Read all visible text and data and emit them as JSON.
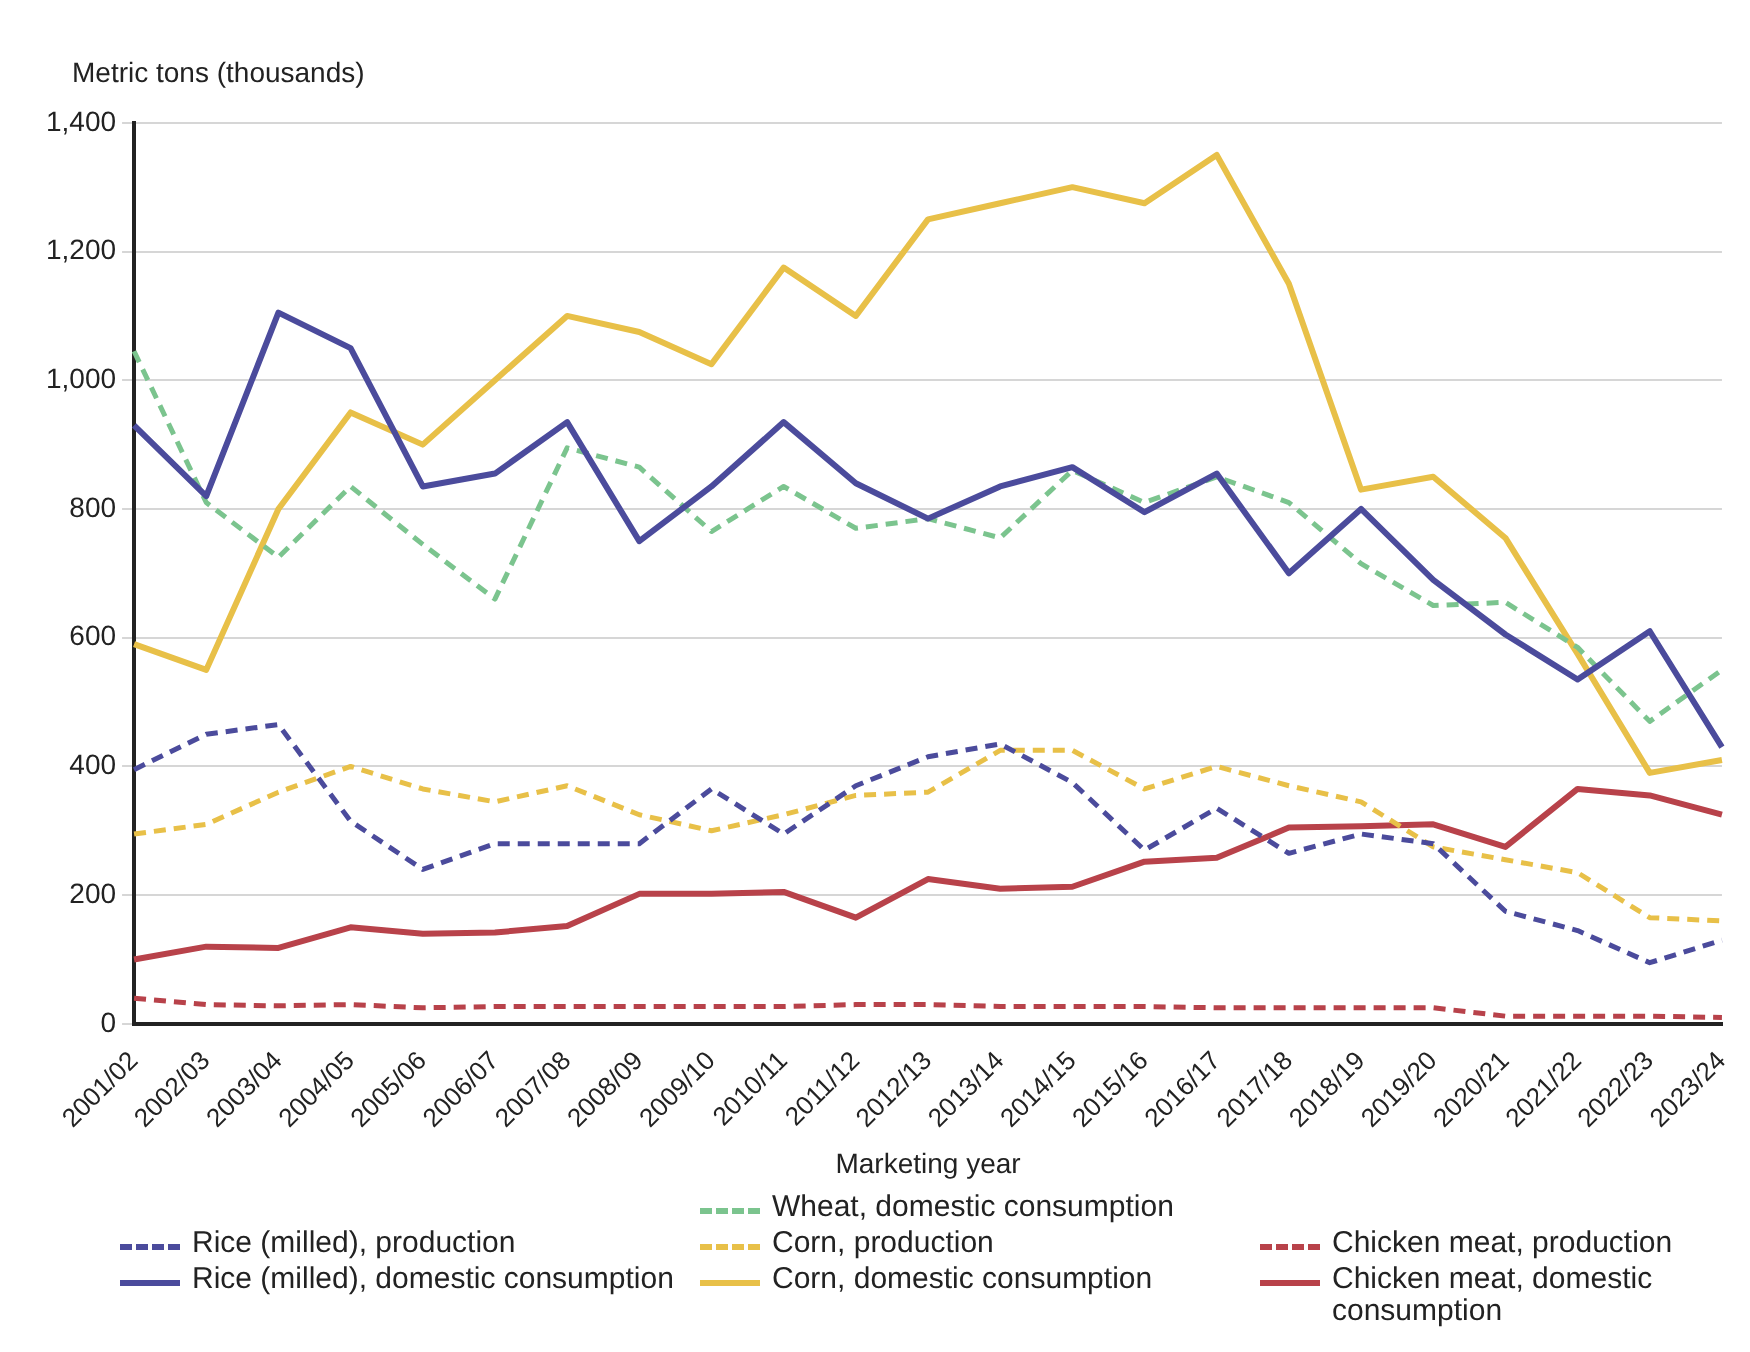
{
  "chart_data": {
    "type": "line",
    "ylabel": "Metric tons (thousands)",
    "xlabel": "Marketing year",
    "categories": [
      "2001/02",
      "2002/03",
      "2003/04",
      "2004/05",
      "2005/06",
      "2006/07",
      "2007/08",
      "2008/09",
      "2009/10",
      "2010/11",
      "2011/12",
      "2012/13",
      "2013/14",
      "2014/15",
      "2015/16",
      "2016/17",
      "2017/18",
      "2018/19",
      "2019/20",
      "2020/21",
      "2021/22",
      "2022/23",
      "2023/24"
    ],
    "ylim": [
      0,
      1400
    ],
    "yticks": [
      {
        "value": 0,
        "label": "0"
      },
      {
        "value": 200,
        "label": "200"
      },
      {
        "value": 400,
        "label": "400"
      },
      {
        "value": 600,
        "label": "600"
      },
      {
        "value": 800,
        "label": "800"
      },
      {
        "value": 1000,
        "label": "1,000"
      },
      {
        "value": 1200,
        "label": "1,200"
      },
      {
        "value": 1400,
        "label": "1,400"
      }
    ],
    "grid": "y",
    "legend": "bottom",
    "marker": "none",
    "series": [
      {
        "name": "Rice (milled), production",
        "color": "#4b4b9c",
        "line_style": "dashed",
        "values": [
          395,
          450,
          465,
          315,
          240,
          280,
          280,
          280,
          365,
          295,
          370,
          415,
          435,
          375,
          270,
          335,
          265,
          295,
          280,
          175,
          145,
          95,
          130
        ]
      },
      {
        "name": "Rice (milled), domestic consumption",
        "color": "#4b4b9c",
        "line_style": "solid",
        "values": [
          930,
          820,
          1105,
          1050,
          835,
          855,
          935,
          750,
          835,
          935,
          840,
          785,
          835,
          865,
          795,
          855,
          700,
          800,
          690,
          605,
          535,
          610,
          430
        ]
      },
      {
        "name": "Wheat, domestic consumption",
        "color": "#7bc48e",
        "line_style": "dashed",
        "values": [
          1045,
          810,
          725,
          835,
          745,
          660,
          895,
          865,
          765,
          835,
          770,
          785,
          755,
          860,
          810,
          850,
          810,
          715,
          650,
          655,
          585,
          470,
          550
        ]
      },
      {
        "name": "Corn, production",
        "color": "#e8c048",
        "line_style": "dashed",
        "values": [
          295,
          310,
          360,
          400,
          365,
          345,
          370,
          325,
          300,
          325,
          355,
          360,
          425,
          425,
          365,
          400,
          370,
          345,
          275,
          255,
          235,
          165,
          160
        ]
      },
      {
        "name": "Corn, domestic consumption",
        "color": "#e8c048",
        "line_style": "solid",
        "values": [
          590,
          550,
          800,
          950,
          900,
          1000,
          1100,
          1075,
          1025,
          1175,
          1100,
          1250,
          1275,
          1300,
          1275,
          1350,
          1150,
          830,
          850,
          755,
          575,
          390,
          410
        ]
      },
      {
        "name": "Chicken meat, production",
        "color": "#b8424a",
        "line_style": "dashed",
        "values": [
          40,
          30,
          28,
          30,
          25,
          27,
          27,
          27,
          27,
          27,
          30,
          30,
          27,
          27,
          27,
          25,
          25,
          25,
          25,
          12,
          12,
          12,
          10
        ]
      },
      {
        "name": "Chicken meat, domestic consumption",
        "color": "#b8424a",
        "line_style": "solid",
        "values": [
          100,
          120,
          118,
          150,
          140,
          142,
          152,
          202,
          202,
          205,
          165,
          225,
          210,
          213,
          252,
          258,
          305,
          307,
          310,
          275,
          365,
          355,
          325
        ]
      }
    ]
  }
}
